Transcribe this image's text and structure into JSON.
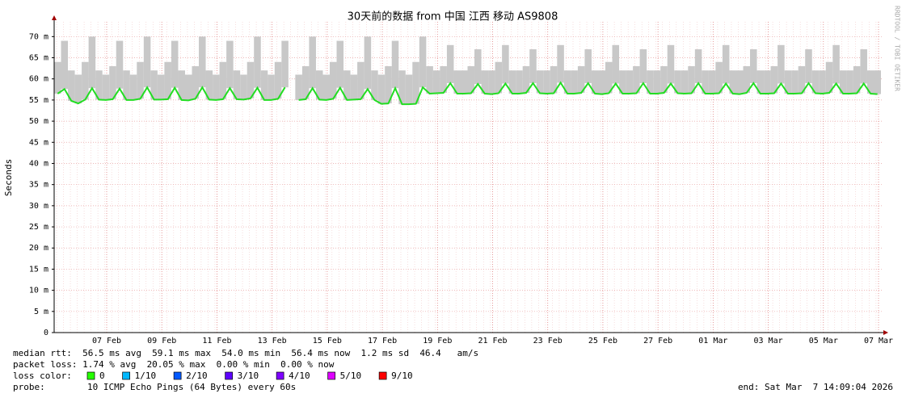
{
  "chart_data": {
    "type": "smokeping",
    "title": "30天前的数据 from 中国 江西 移动 AS9808",
    "y_label": "Seconds",
    "side_note": "RRDTOOL / TOBI OETIKER",
    "ylim": [
      0,
      0.0735
    ],
    "yticks": [
      0,
      {
        "value": 0.005,
        "label": "5 m"
      },
      {
        "value": 0.01,
        "label": "10 m"
      },
      {
        "value": 0.015,
        "label": "15 m"
      },
      {
        "value": 0.02,
        "label": "20 m"
      },
      {
        "value": 0.025,
        "label": "25 m"
      },
      {
        "value": 0.03,
        "label": "30 m"
      },
      {
        "value": 0.035,
        "label": "35 m"
      },
      {
        "value": 0.04,
        "label": "40 m"
      },
      {
        "value": 0.045,
        "label": "45 m"
      },
      {
        "value": 0.05,
        "label": "50 m"
      },
      {
        "value": 0.055,
        "label": "55 m"
      },
      {
        "value": 0.06,
        "label": "60 m"
      },
      {
        "value": 0.065,
        "label": "65 m"
      },
      {
        "value": 0.07,
        "label": "70 m"
      }
    ],
    "xticks": [
      "07 Feb",
      "09 Feb",
      "11 Feb",
      "13 Feb",
      "15 Feb",
      "17 Feb",
      "19 Feb",
      "21 Feb",
      "23 Feb",
      "25 Feb",
      "27 Feb",
      "01 Mar",
      "03 Mar",
      "05 Mar",
      "07 Mar"
    ],
    "grid": true,
    "series": [
      {
        "color": "#c8c8c8",
        "values": [
          0.064,
          0.069,
          0.062,
          0.061,
          0.064,
          0.07,
          0.062,
          0.061,
          0.063,
          0.069,
          0.062,
          0.061,
          0.064,
          0.07,
          0.062,
          0.061,
          0.064,
          0.069,
          0.062,
          0.061,
          0.063,
          0.07,
          0.062,
          0.061,
          0.064,
          0.069,
          0.062,
          0.061,
          0.064,
          0.07,
          0.062,
          0.061,
          0.064,
          0.069,
          null,
          0.061,
          0.063,
          0.07,
          0.062,
          0.061,
          0.064,
          0.069,
          0.062,
          0.061,
          0.064,
          0.07,
          0.062,
          0.061,
          0.063,
          0.069,
          0.062,
          0.061,
          0.064,
          0.07,
          0.063,
          0.062,
          0.063,
          0.068,
          0.062,
          0.062,
          0.063,
          0.067,
          0.062,
          0.062,
          0.064,
          0.068,
          0.062,
          0.062,
          0.063,
          0.067,
          0.062,
          0.062,
          0.063,
          0.068,
          0.062,
          0.062,
          0.063,
          0.067,
          0.062,
          0.062,
          0.064,
          0.068,
          0.062,
          0.062,
          0.063,
          0.067,
          0.062,
          0.062,
          0.063,
          0.068,
          0.062,
          0.062,
          0.063,
          0.067,
          0.062,
          0.062,
          0.064,
          0.068,
          0.062,
          0.062,
          0.063,
          0.067,
          0.062,
          0.062,
          0.063,
          0.068,
          0.062,
          0.062,
          0.063,
          0.067,
          0.062,
          0.062,
          0.064,
          0.068,
          0.062,
          0.062,
          0.063,
          0.067,
          0.062,
          0.062
        ]
      },
      {
        "color": "#22dd22",
        "values": [
          0.0565,
          0.0576,
          0.0548,
          0.0542,
          0.0551,
          0.0578,
          0.0551,
          0.055,
          0.0552,
          0.0577,
          0.055,
          0.055,
          0.0553,
          0.058,
          0.0551,
          0.0551,
          0.0552,
          0.0579,
          0.055,
          0.0549,
          0.0553,
          0.058,
          0.0551,
          0.055,
          0.0552,
          0.0578,
          0.0552,
          0.0551,
          0.0554,
          0.0579,
          0.055,
          0.055,
          0.0553,
          0.058,
          null,
          0.055,
          0.0552,
          0.0578,
          0.0551,
          0.055,
          0.0553,
          0.0579,
          0.055,
          0.0551,
          0.0552,
          0.0576,
          0.055,
          0.0541,
          0.0542,
          0.0578,
          0.054,
          0.054,
          0.0541,
          0.058,
          0.0565,
          0.0566,
          0.0567,
          0.059,
          0.0565,
          0.0565,
          0.0566,
          0.0588,
          0.0565,
          0.0564,
          0.0566,
          0.0589,
          0.0565,
          0.0565,
          0.0567,
          0.059,
          0.0566,
          0.0565,
          0.0566,
          0.0591,
          0.0565,
          0.0565,
          0.0567,
          0.059,
          0.0565,
          0.0564,
          0.0566,
          0.0589,
          0.0565,
          0.0565,
          0.0566,
          0.059,
          0.0565,
          0.0565,
          0.0567,
          0.0589,
          0.0566,
          0.0565,
          0.0566,
          0.059,
          0.0565,
          0.0565,
          0.0566,
          0.0589,
          0.0565,
          0.0564,
          0.0567,
          0.059,
          0.0565,
          0.0565,
          0.0566,
          0.0589,
          0.0565,
          0.0565,
          0.0566,
          0.059,
          0.0566,
          0.0565,
          0.0567,
          0.0589,
          0.0565,
          0.0565,
          0.0566,
          0.0589,
          0.0565,
          0.0564
        ]
      }
    ],
    "stats": [
      "median rtt:  56.5 ms avg  59.1 ms max  54.0 ms min  56.4 ms now  1.2 ms sd  46.4   am/s",
      "packet loss: 1.74 % avg  20.05 % max  0.00 % min  0.00 % now"
    ],
    "loss_label": "loss color:",
    "loss_colors": [
      {
        "name": "0",
        "color": "#26ff00"
      },
      {
        "name": "1/10",
        "color": "#00b8ff"
      },
      {
        "name": "2/10",
        "color": "#0059ff"
      },
      {
        "name": "3/10",
        "color": "#5e00ff"
      },
      {
        "name": "4/10",
        "color": "#7e00ff"
      },
      {
        "name": "5/10",
        "color": "#dd00ff"
      },
      {
        "name": "9/10",
        "color": "#ff0000"
      }
    ],
    "probe_label": "probe:",
    "probe": "10 ICMP Echo Pings (64 Bytes) every 60s",
    "end": "end: Sat Mar  7 14:09:04 2026"
  }
}
